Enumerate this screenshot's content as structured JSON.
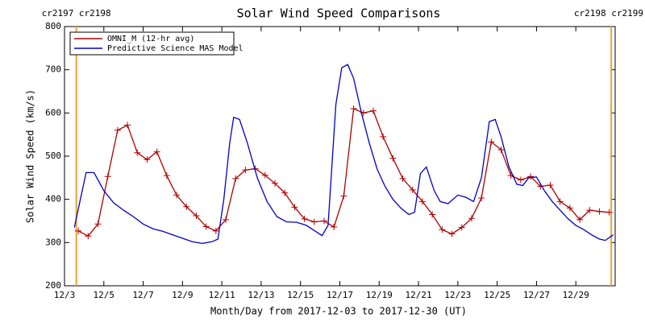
{
  "chart_data": {
    "type": "line",
    "title": "Solar Wind Speed Comparisons",
    "xlabel": "Month/Day from 2017-12-03 to 2017-12-30 (UT)",
    "ylabel": "Solar Wind Speed (km/s)",
    "xlim": [
      0,
      28
    ],
    "ylim": [
      200,
      800
    ],
    "yticks": [
      200,
      300,
      400,
      500,
      600,
      700,
      800
    ],
    "xticks": [
      {
        "value": 0,
        "label": "12/3"
      },
      {
        "value": 2,
        "label": "12/5"
      },
      {
        "value": 4,
        "label": "12/7"
      },
      {
        "value": 6,
        "label": "12/9"
      },
      {
        "value": 8,
        "label": "12/11"
      },
      {
        "value": 10,
        "label": "12/13"
      },
      {
        "value": 12,
        "label": "12/15"
      },
      {
        "value": 14,
        "label": "12/17"
      },
      {
        "value": 16,
        "label": "12/19"
      },
      {
        "value": 18,
        "label": "12/21"
      },
      {
        "value": 20,
        "label": "12/23"
      },
      {
        "value": 22,
        "label": "12/25"
      },
      {
        "value": 24,
        "label": "12/27"
      },
      {
        "value": 26,
        "label": "12/29"
      }
    ],
    "boundaries": [
      {
        "x": 0.6,
        "label": "cr2197 cr2198",
        "color": "#f0a030"
      },
      {
        "x": 27.8,
        "label": "cr2198 cr2199",
        "color": "#f0a030"
      }
    ],
    "legend": "upper left",
    "series": [
      {
        "name": "OMNI_M (12-hr avg)",
        "color": "#b00000",
        "marker": "plus",
        "x": [
          0.7,
          1.2,
          1.7,
          2.2,
          2.7,
          3.2,
          3.7,
          4.2,
          4.7,
          5.2,
          5.7,
          6.2,
          6.7,
          7.2,
          7.7,
          8.2,
          8.7,
          9.2,
          9.7,
          10.2,
          10.7,
          11.2,
          11.7,
          12.2,
          12.7,
          13.2,
          13.7,
          14.2,
          14.7,
          15.2,
          15.7,
          16.2,
          16.7,
          17.2,
          17.7,
          18.2,
          18.7,
          19.2,
          19.7,
          20.2,
          20.7,
          21.2,
          21.7,
          22.2,
          22.7,
          23.2,
          23.7,
          24.2,
          24.7,
          25.2,
          25.7,
          26.2,
          26.7,
          27.2,
          27.7
        ],
        "values": [
          327,
          315,
          343,
          453,
          560,
          572,
          508,
          492,
          510,
          455,
          410,
          383,
          362,
          337,
          327,
          353,
          448,
          468,
          471,
          456,
          437,
          415,
          382,
          355,
          348,
          350,
          336,
          408,
          610,
          600,
          605,
          545,
          495,
          448,
          422,
          395,
          365,
          330,
          320,
          335,
          356,
          403,
          533,
          515,
          455,
          445,
          453,
          430,
          433,
          395,
          380,
          353,
          375,
          372,
          370
        ]
      },
      {
        "name": "Predictive Science MAS Model",
        "color": "#0000cc",
        "x": [
          0.5,
          1.1,
          1.5,
          2,
          2.5,
          3,
          3.5,
          4,
          4.5,
          5,
          5.5,
          6,
          6.5,
          7,
          7.5,
          7.8,
          8.1,
          8.4,
          8.6,
          8.9,
          9.3,
          9.8,
          10.3,
          10.8,
          11.3,
          11.8,
          12.3,
          12.8,
          13.1,
          13.4,
          13.8,
          14.1,
          14.4,
          14.7,
          15.1,
          15.5,
          15.9,
          16.3,
          16.7,
          17.1,
          17.5,
          17.8,
          18.1,
          18.4,
          18.8,
          19.1,
          19.5,
          20,
          20.4,
          20.8,
          21.2,
          21.6,
          21.9,
          22.2,
          22.6,
          23,
          23.3,
          23.6,
          24,
          24.4,
          24.8,
          25.2,
          25.6,
          26,
          26.4,
          26.8,
          27.2,
          27.5,
          27.9
        ],
        "values": [
          335,
          462,
          462,
          420,
          392,
          375,
          360,
          343,
          332,
          326,
          318,
          310,
          302,
          298,
          302,
          308,
          400,
          530,
          590,
          585,
          530,
          450,
          395,
          360,
          348,
          347,
          340,
          325,
          316,
          340,
          620,
          705,
          712,
          680,
          600,
          530,
          470,
          430,
          400,
          380,
          365,
          370,
          460,
          475,
          420,
          395,
          390,
          410,
          405,
          395,
          450,
          580,
          585,
          545,
          475,
          435,
          432,
          450,
          452,
          420,
          395,
          375,
          355,
          340,
          330,
          318,
          308,
          305,
          318
        ]
      }
    ]
  }
}
